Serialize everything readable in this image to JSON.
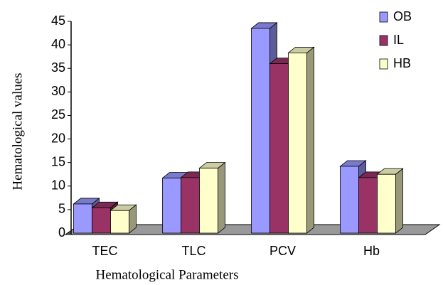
{
  "chart_data": {
    "type": "bar3d",
    "xlabel": "Hematological Parameters",
    "ylabel": "Hematological values",
    "categories": [
      "TEC",
      "TLC",
      "PCV",
      "Hb"
    ],
    "series": [
      {
        "name": "OB",
        "color": "#9999ff",
        "values": [
          6.2,
          11.7,
          43.5,
          14.2
        ]
      },
      {
        "name": "IL",
        "color": "#993366",
        "values": [
          5.4,
          11.8,
          36,
          11.8
        ]
      },
      {
        "name": "HB",
        "color": "#ffffcc",
        "values": [
          4.8,
          13.8,
          38.3,
          12.5
        ]
      }
    ],
    "ylim": [
      0,
      45
    ],
    "yticks": [
      0,
      5,
      10,
      15,
      20,
      25,
      30,
      35,
      40,
      45
    ],
    "legend": "top-right"
  }
}
